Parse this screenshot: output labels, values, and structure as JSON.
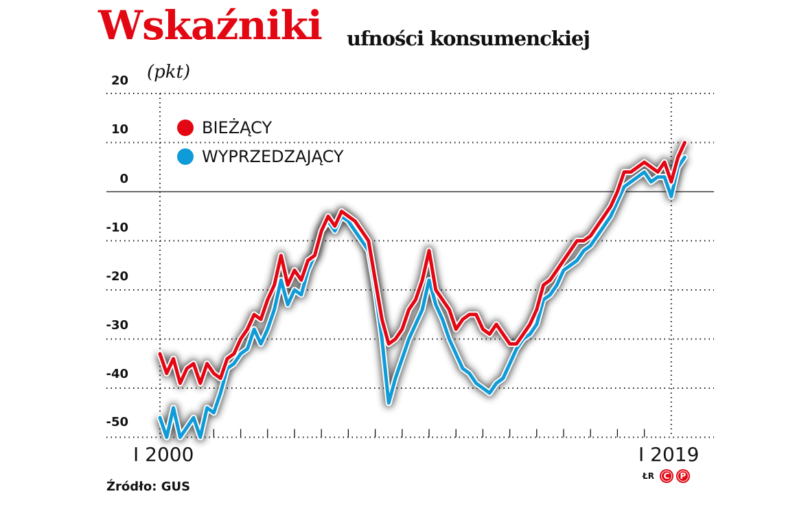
{
  "header": {
    "title": "Wskaźniki",
    "subtitle": "ufności konsumenckiej",
    "unit": "(pkt)"
  },
  "legend": {
    "items": [
      {
        "label": "BIEŻĄCY",
        "color": "#E30613"
      },
      {
        "label": "WYPRZEDZAJĄCY",
        "color": "#0F9BD7"
      }
    ]
  },
  "axis": {
    "y_ticks": [
      "20",
      "10",
      "0",
      "-10",
      "-20",
      "-30",
      "-40",
      "-50"
    ],
    "x_start_label": "I 2000",
    "x_end_label": "I 2019"
  },
  "footer": {
    "source": "Źródło: GUS",
    "credit_initials": "ŁR",
    "badge_c": "C",
    "badge_p": "P"
  },
  "chart_data": {
    "type": "line",
    "title": "Wskaźniki ufności konsumenckiej",
    "ylabel": "(pkt)",
    "xlabel": "",
    "ylim": [
      -50,
      20
    ],
    "xlim": [
      2000,
      2019.9
    ],
    "grid": true,
    "legend_position": "top-left",
    "x_tick_labels": [
      "I 2000",
      "I 2019"
    ],
    "y_tick_labels": [
      20,
      10,
      0,
      -10,
      -20,
      -30,
      -40,
      -50
    ],
    "x": [
      2000.0,
      2000.25,
      2000.5,
      2000.75,
      2001.0,
      2001.25,
      2001.5,
      2001.75,
      2002.0,
      2002.25,
      2002.5,
      2002.75,
      2003.0,
      2003.25,
      2003.5,
      2003.75,
      2004.0,
      2004.25,
      2004.5,
      2004.75,
      2005.0,
      2005.25,
      2005.5,
      2005.75,
      2006.0,
      2006.25,
      2006.5,
      2006.75,
      2007.0,
      2007.25,
      2007.5,
      2007.75,
      2008.0,
      2008.25,
      2008.5,
      2008.75,
      2009.0,
      2009.25,
      2009.5,
      2009.75,
      2010.0,
      2010.25,
      2010.5,
      2010.75,
      2011.0,
      2011.25,
      2011.5,
      2011.75,
      2012.0,
      2012.25,
      2012.5,
      2012.75,
      2013.0,
      2013.25,
      2013.5,
      2013.75,
      2014.0,
      2014.25,
      2014.5,
      2014.75,
      2015.0,
      2015.25,
      2015.5,
      2015.75,
      2016.0,
      2016.25,
      2016.5,
      2016.75,
      2017.0,
      2017.25,
      2017.5,
      2017.75,
      2018.0,
      2018.25,
      2018.5,
      2018.75,
      2019.0,
      2019.25,
      2019.5
    ],
    "series": [
      {
        "name": "BIEŻĄCY",
        "color": "#E30613",
        "values": [
          -33,
          -37,
          -34,
          -39,
          -36,
          -35,
          -39,
          -35,
          -37,
          -38,
          -34,
          -33,
          -30,
          -28,
          -25,
          -26,
          -22,
          -19,
          -13,
          -19,
          -16,
          -18,
          -14,
          -13,
          -8,
          -5,
          -7,
          -4,
          -5,
          -6,
          -8,
          -10,
          -18,
          -26,
          -31,
          -30,
          -28,
          -24,
          -22,
          -18,
          -12,
          -20,
          -22,
          -24,
          -28,
          -26,
          -25,
          -25,
          -28,
          -29,
          -27,
          -29,
          -31,
          -31,
          -29,
          -27,
          -24,
          -19,
          -18,
          -16,
          -14,
          -12,
          -10,
          -10,
          -9,
          -7,
          -5,
          -3,
          0,
          4,
          4,
          5,
          6,
          5,
          4,
          6,
          2,
          7,
          10
        ]
      },
      {
        "name": "WYPRZEDZAJĄCY",
        "color": "#0F9BD7",
        "values": [
          -46,
          -50,
          -44,
          -50,
          -48,
          -46,
          -50,
          -44,
          -45,
          -41,
          -36,
          -35,
          -33,
          -32,
          -28,
          -31,
          -28,
          -24,
          -18,
          -23,
          -20,
          -21,
          -16,
          -13,
          -8,
          -6,
          -8,
          -5,
          -6,
          -8,
          -10,
          -12,
          -20,
          -30,
          -43,
          -38,
          -34,
          -30,
          -27,
          -24,
          -18,
          -23,
          -26,
          -30,
          -33,
          -36,
          -37,
          -39,
          -40,
          -41,
          -39,
          -38,
          -35,
          -32,
          -30,
          -29,
          -27,
          -22,
          -21,
          -19,
          -16,
          -15,
          -14,
          -12,
          -11,
          -9,
          -7,
          -5,
          -2,
          1,
          2,
          3,
          4,
          2,
          3,
          3,
          -1,
          5,
          7
        ]
      }
    ]
  }
}
